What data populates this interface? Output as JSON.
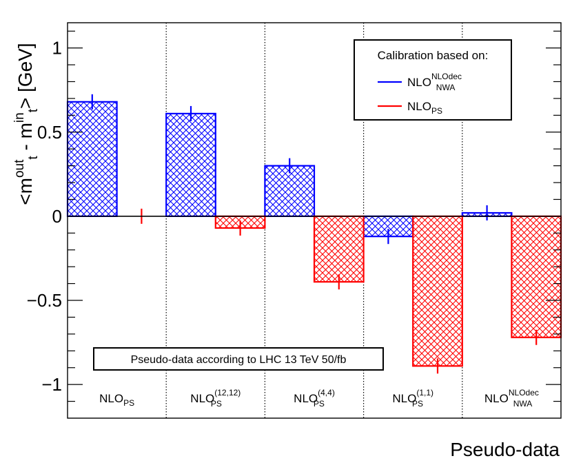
{
  "chart_data": {
    "type": "bar",
    "ylabel_parts": {
      "open": "<m",
      "sup_out": "out",
      "sub_t1": "t",
      "minus": " - m",
      "sup_in": "in",
      "sub_t2": "t",
      "close": "> [GeV]"
    },
    "xlabel": "Pseudo-data",
    "ylim": [
      -1.2,
      1.15
    ],
    "yticks": [
      {
        "value": 1,
        "label": "1"
      },
      {
        "value": 0.5,
        "label": "0.5"
      },
      {
        "value": 0,
        "label": "0"
      },
      {
        "value": -0.5,
        "label": "−0.5"
      },
      {
        "value": -1,
        "label": "−1"
      }
    ],
    "categories": [
      {
        "base": "NLO",
        "sup": "",
        "sub": "PS"
      },
      {
        "base": "NLO",
        "sup": "(12,12)",
        "sub": "PS"
      },
      {
        "base": "NLO",
        "sup": "(4,4)",
        "sub": "PS"
      },
      {
        "base": "NLO",
        "sup": "(1,1)",
        "sub": "PS"
      },
      {
        "base": "NLO",
        "sup": "NLOdec",
        "sub": "NWA"
      }
    ],
    "series": [
      {
        "name": "NLO_NWA^NLOdec",
        "legend": {
          "base": "NLO",
          "sup": "NLOdec",
          "sub": "NWA"
        },
        "color": "#0000ff",
        "values": [
          0.68,
          0.61,
          0.3,
          -0.12,
          0.02
        ],
        "errors": [
          0.045,
          0.045,
          0.045,
          0.045,
          0.045
        ]
      },
      {
        "name": "NLO_PS",
        "legend": {
          "base": "NLO",
          "sup": "",
          "sub": "PS"
        },
        "color": "#ff0000",
        "values": [
          0.0,
          -0.07,
          -0.39,
          -0.89,
          -0.72
        ],
        "errors": [
          0.045,
          0.045,
          0.045,
          0.045,
          0.045
        ]
      }
    ],
    "legend_title": "Calibration based on:",
    "annotation": "Pseudo-data according to LHC 13 TeV 50/fb"
  }
}
